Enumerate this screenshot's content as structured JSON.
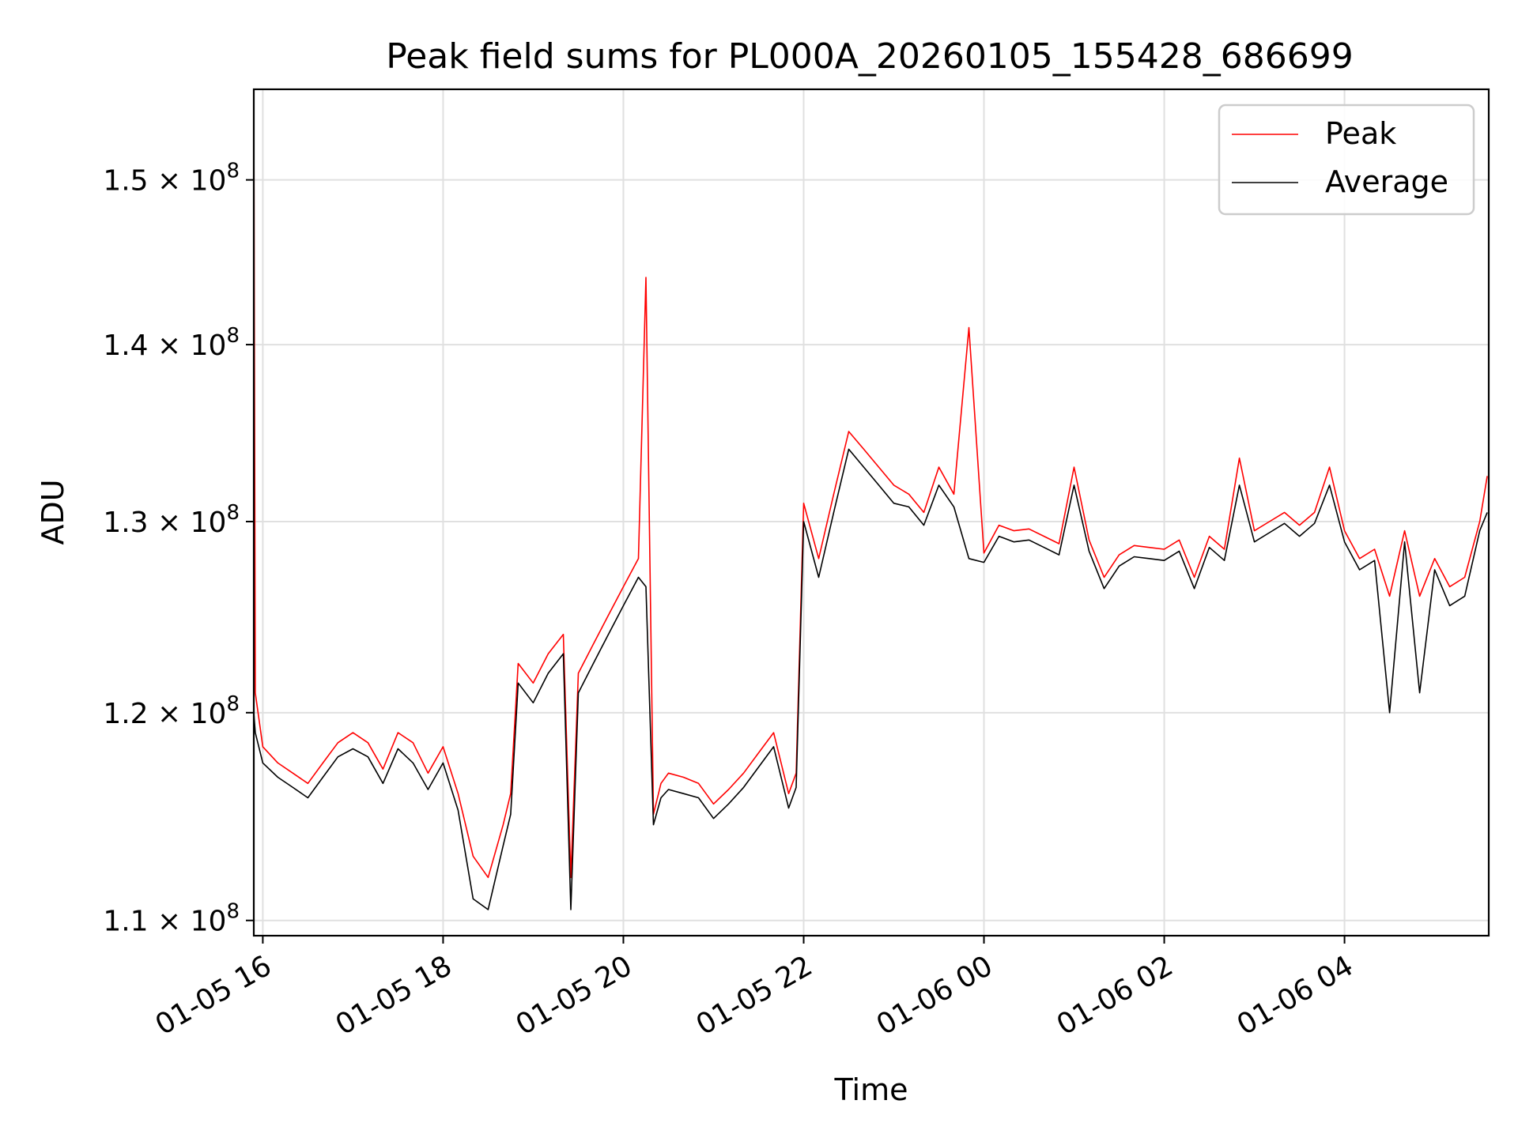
{
  "chart_data": {
    "type": "line",
    "title": "Peak field sums for PL000A_20260105_155428_686699",
    "xlabel": "Time",
    "ylabel": "ADU",
    "y_scale": "log",
    "xlim": [
      "2026-01-05 15:54",
      "2026-01-06 05:36"
    ],
    "ylim": [
      109300000,
      155800000
    ],
    "x_ticks": [
      {
        "t": "2026-01-05 16:00",
        "label": "01-05 16"
      },
      {
        "t": "2026-01-05 18:00",
        "label": "01-05 18"
      },
      {
        "t": "2026-01-05 20:00",
        "label": "01-05 20"
      },
      {
        "t": "2026-01-05 22:00",
        "label": "01-05 22"
      },
      {
        "t": "2026-01-06 00:00",
        "label": "01-06 00"
      },
      {
        "t": "2026-01-06 02:00",
        "label": "01-06 02"
      },
      {
        "t": "2026-01-06 04:00",
        "label": "01-06 04"
      }
    ],
    "y_ticks": [
      {
        "value": 110000000,
        "mantissa": "1.1",
        "exp": "8"
      },
      {
        "value": 120000000,
        "mantissa": "1.2",
        "exp": "8"
      },
      {
        "value": 130000000,
        "mantissa": "1.3",
        "exp": "8"
      },
      {
        "value": 140000000,
        "mantissa": "1.4",
        "exp": "8"
      },
      {
        "value": 150000000,
        "mantissa": "1.5",
        "exp": "8"
      }
    ],
    "grid": true,
    "legend_position": "top-right",
    "series": [
      {
        "name": "Peak",
        "color": "#ff0000",
        "x": [
          "2026-01-05 15:54",
          "2026-01-05 15:55",
          "2026-01-05 16:00",
          "2026-01-05 16:10",
          "2026-01-05 16:20",
          "2026-01-05 16:30",
          "2026-01-05 16:40",
          "2026-01-05 16:50",
          "2026-01-05 17:00",
          "2026-01-05 17:10",
          "2026-01-05 17:20",
          "2026-01-05 17:30",
          "2026-01-05 17:40",
          "2026-01-05 17:50",
          "2026-01-05 18:00",
          "2026-01-05 18:10",
          "2026-01-05 18:20",
          "2026-01-05 18:30",
          "2026-01-05 18:40",
          "2026-01-05 18:45",
          "2026-01-05 18:50",
          "2026-01-05 19:00",
          "2026-01-05 19:10",
          "2026-01-05 19:20",
          "2026-01-05 19:25",
          "2026-01-05 19:30",
          "2026-01-05 19:40",
          "2026-01-05 19:50",
          "2026-01-05 20:00",
          "2026-01-05 20:10",
          "2026-01-05 20:15",
          "2026-01-05 20:20",
          "2026-01-05 20:25",
          "2026-01-05 20:30",
          "2026-01-05 20:40",
          "2026-01-05 20:50",
          "2026-01-05 21:00",
          "2026-01-05 21:10",
          "2026-01-05 21:20",
          "2026-01-05 21:30",
          "2026-01-05 21:40",
          "2026-01-05 21:50",
          "2026-01-05 21:55",
          "2026-01-05 22:00",
          "2026-01-05 22:10",
          "2026-01-05 22:20",
          "2026-01-05 22:30",
          "2026-01-05 22:40",
          "2026-01-05 22:50",
          "2026-01-05 23:00",
          "2026-01-05 23:10",
          "2026-01-05 23:20",
          "2026-01-05 23:30",
          "2026-01-05 23:40",
          "2026-01-05 23:50",
          "2026-01-06 00:00",
          "2026-01-06 00:10",
          "2026-01-06 00:20",
          "2026-01-06 00:30",
          "2026-01-06 00:40",
          "2026-01-06 00:50",
          "2026-01-06 01:00",
          "2026-01-06 01:10",
          "2026-01-06 01:20",
          "2026-01-06 01:30",
          "2026-01-06 01:40",
          "2026-01-06 01:50",
          "2026-01-06 02:00",
          "2026-01-06 02:10",
          "2026-01-06 02:20",
          "2026-01-06 02:30",
          "2026-01-06 02:40",
          "2026-01-06 02:50",
          "2026-01-06 03:00",
          "2026-01-06 03:10",
          "2026-01-06 03:20",
          "2026-01-06 03:30",
          "2026-01-06 03:40",
          "2026-01-06 03:50",
          "2026-01-06 04:00",
          "2026-01-06 04:10",
          "2026-01-06 04:20",
          "2026-01-06 04:30",
          "2026-01-06 04:40",
          "2026-01-06 04:50",
          "2026-01-06 05:00",
          "2026-01-06 05:10",
          "2026-01-06 05:20",
          "2026-01-06 05:30",
          "2026-01-06 05:35"
        ],
        "y": [
          155000000,
          121000000,
          118300000,
          117500000,
          117000000,
          116500000,
          117500000,
          118500000,
          119000000,
          118500000,
          117200000,
          119000000,
          118500000,
          117000000,
          118300000,
          116000000,
          113000000,
          112000000,
          114500000,
          116000000,
          122500000,
          121500000,
          123000000,
          124000000,
          112000000,
          122000000,
          123500000,
          125000000,
          126500000,
          128000000,
          144000000,
          115000000,
          116500000,
          117000000,
          116800000,
          116500000,
          115500000,
          116200000,
          117000000,
          118000000,
          119000000,
          116000000,
          117000000,
          131000000,
          128000000,
          131500000,
          135000000,
          134000000,
          133000000,
          132000000,
          131500000,
          130500000,
          133000000,
          131500000,
          141000000,
          128300000,
          129800000,
          129500000,
          129600000,
          129200000,
          128800000,
          133000000,
          129000000,
          127000000,
          128200000,
          128700000,
          128600000,
          128500000,
          129000000,
          127000000,
          129200000,
          128500000,
          133500000,
          129500000,
          130000000,
          130500000,
          129800000,
          130500000,
          133000000,
          129500000,
          128000000,
          128500000,
          126000000,
          129500000,
          126000000,
          128000000,
          126500000,
          127000000,
          130000000,
          132500000
        ]
      },
      {
        "name": "Average",
        "color": "#000000",
        "x": [
          "2026-01-05 15:54",
          "2026-01-05 15:55",
          "2026-01-05 16:00",
          "2026-01-05 16:10",
          "2026-01-05 16:20",
          "2026-01-05 16:30",
          "2026-01-05 16:40",
          "2026-01-05 16:50",
          "2026-01-05 17:00",
          "2026-01-05 17:10",
          "2026-01-05 17:20",
          "2026-01-05 17:30",
          "2026-01-05 17:40",
          "2026-01-05 17:50",
          "2026-01-05 18:00",
          "2026-01-05 18:10",
          "2026-01-05 18:20",
          "2026-01-05 18:30",
          "2026-01-05 18:40",
          "2026-01-05 18:45",
          "2026-01-05 18:50",
          "2026-01-05 19:00",
          "2026-01-05 19:10",
          "2026-01-05 19:20",
          "2026-01-05 19:25",
          "2026-01-05 19:30",
          "2026-01-05 19:40",
          "2026-01-05 19:50",
          "2026-01-05 20:00",
          "2026-01-05 20:10",
          "2026-01-05 20:15",
          "2026-01-05 20:20",
          "2026-01-05 20:25",
          "2026-01-05 20:30",
          "2026-01-05 20:40",
          "2026-01-05 20:50",
          "2026-01-05 21:00",
          "2026-01-05 21:10",
          "2026-01-05 21:20",
          "2026-01-05 21:30",
          "2026-01-05 21:40",
          "2026-01-05 21:50",
          "2026-01-05 21:55",
          "2026-01-05 22:00",
          "2026-01-05 22:10",
          "2026-01-05 22:20",
          "2026-01-05 22:30",
          "2026-01-05 22:40",
          "2026-01-05 22:50",
          "2026-01-05 23:00",
          "2026-01-05 23:10",
          "2026-01-05 23:20",
          "2026-01-05 23:30",
          "2026-01-05 23:40",
          "2026-01-05 23:50",
          "2026-01-06 00:00",
          "2026-01-06 00:10",
          "2026-01-06 00:20",
          "2026-01-06 00:30",
          "2026-01-06 00:40",
          "2026-01-06 00:50",
          "2026-01-06 01:00",
          "2026-01-06 01:10",
          "2026-01-06 01:20",
          "2026-01-06 01:30",
          "2026-01-06 01:40",
          "2026-01-06 01:50",
          "2026-01-06 02:00",
          "2026-01-06 02:10",
          "2026-01-06 02:20",
          "2026-01-06 02:30",
          "2026-01-06 02:40",
          "2026-01-06 02:50",
          "2026-01-06 03:00",
          "2026-01-06 03:10",
          "2026-01-06 03:20",
          "2026-01-06 03:30",
          "2026-01-06 03:40",
          "2026-01-06 03:50",
          "2026-01-06 04:00",
          "2026-01-06 04:10",
          "2026-01-06 04:20",
          "2026-01-06 04:30",
          "2026-01-06 04:40",
          "2026-01-06 04:50",
          "2026-01-06 05:00",
          "2026-01-06 05:10",
          "2026-01-06 05:20",
          "2026-01-06 05:30",
          "2026-01-06 05:35"
        ],
        "y": [
          120000000,
          119000000,
          117500000,
          116800000,
          116300000,
          115800000,
          116800000,
          117800000,
          118200000,
          117800000,
          116500000,
          118200000,
          117500000,
          116200000,
          117500000,
          115200000,
          111000000,
          110500000,
          113500000,
          115000000,
          121500000,
          120500000,
          122000000,
          123000000,
          110500000,
          121000000,
          122500000,
          124000000,
          125500000,
          127000000,
          126500000,
          114500000,
          115800000,
          116200000,
          116000000,
          115800000,
          114800000,
          115500000,
          116300000,
          117300000,
          118300000,
          115300000,
          116300000,
          130000000,
          127000000,
          130500000,
          134000000,
          133000000,
          132000000,
          131000000,
          130800000,
          129800000,
          132000000,
          130800000,
          128000000,
          127800000,
          129200000,
          128900000,
          129000000,
          128600000,
          128200000,
          132000000,
          128400000,
          126400000,
          127600000,
          128100000,
          128000000,
          127900000,
          128400000,
          126400000,
          128600000,
          127900000,
          132000000,
          128900000,
          129400000,
          129900000,
          129200000,
          129900000,
          132000000,
          128900000,
          127400000,
          127900000,
          120000000,
          128900000,
          121000000,
          127400000,
          125500000,
          126000000,
          129500000,
          130500000
        ]
      }
    ]
  }
}
